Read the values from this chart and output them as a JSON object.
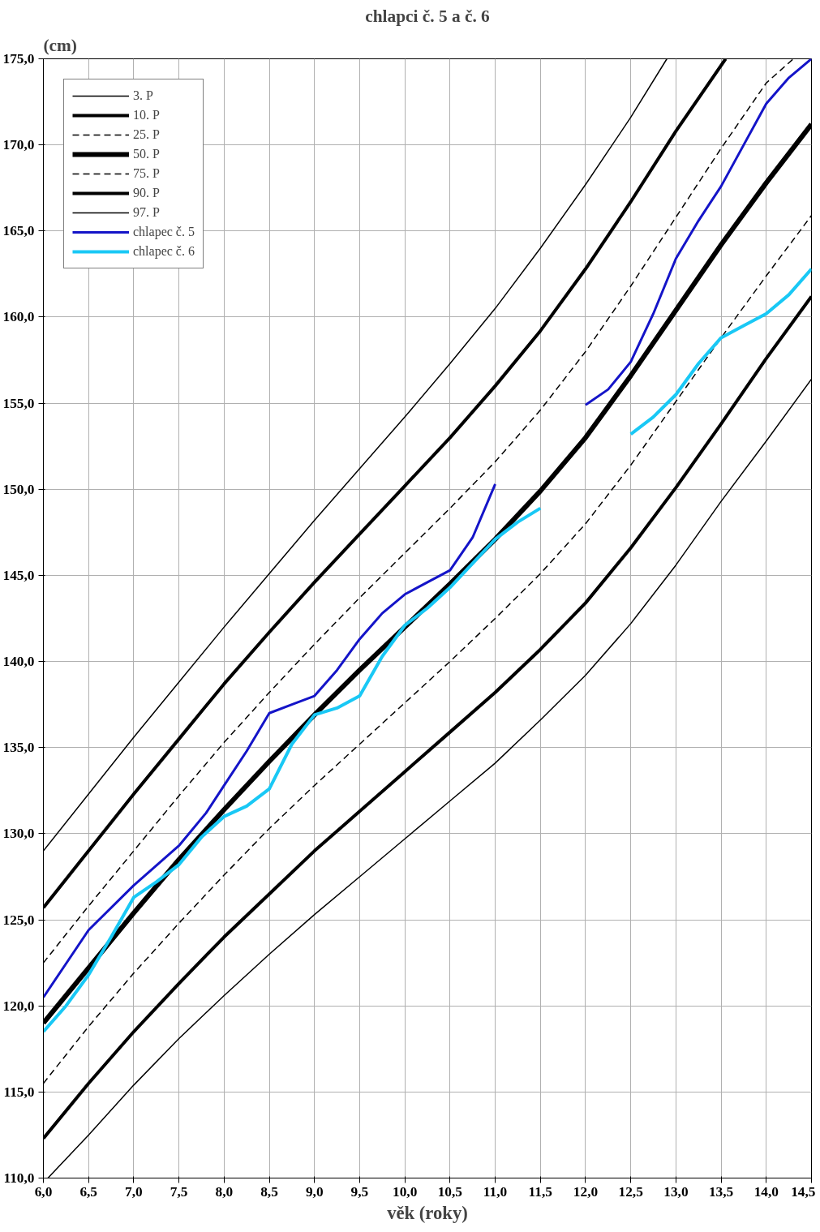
{
  "chart_data": {
    "type": "line",
    "title": "chlapci č. 5 a č. 6",
    "ylabel": "(cm)",
    "xlabel": "věk (roky)",
    "xlim": [
      6.0,
      14.5
    ],
    "ylim": [
      110,
      175
    ],
    "xticks": [
      {
        "value": 6.0,
        "label": "6,0"
      },
      {
        "value": 6.5,
        "label": "6,5"
      },
      {
        "value": 7.0,
        "label": "7,0"
      },
      {
        "value": 7.5,
        "label": "7,5"
      },
      {
        "value": 8.0,
        "label": "8,0"
      },
      {
        "value": 8.5,
        "label": "8,5"
      },
      {
        "value": 9.0,
        "label": "9,0"
      },
      {
        "value": 9.5,
        "label": "9,5"
      },
      {
        "value": 10.0,
        "label": "10,0"
      },
      {
        "value": 10.5,
        "label": "10,5"
      },
      {
        "value": 11.0,
        "label": "11,0"
      },
      {
        "value": 11.5,
        "label": "11,5"
      },
      {
        "value": 12.0,
        "label": "12,0"
      },
      {
        "value": 12.5,
        "label": "12,5"
      },
      {
        "value": 13.0,
        "label": "13,0"
      },
      {
        "value": 13.5,
        "label": "13,5"
      },
      {
        "value": 14.0,
        "label": "14,0"
      },
      {
        "value": 14.5,
        "label": "14,5"
      }
    ],
    "yticks": [
      {
        "value": 110,
        "label": "110,0"
      },
      {
        "value": 115,
        "label": "115,0"
      },
      {
        "value": 120,
        "label": "120,0"
      },
      {
        "value": 125,
        "label": "125,0"
      },
      {
        "value": 130,
        "label": "130,0"
      },
      {
        "value": 135,
        "label": "135,0"
      },
      {
        "value": 140,
        "label": "140,0"
      },
      {
        "value": 145,
        "label": "145,0"
      },
      {
        "value": 150,
        "label": "150,0"
      },
      {
        "value": 155,
        "label": "155,0"
      },
      {
        "value": 160,
        "label": "160,0"
      },
      {
        "value": 165,
        "label": "165,0"
      },
      {
        "value": 170,
        "label": "170,0"
      },
      {
        "value": 175,
        "label": "175,0"
      }
    ],
    "grid": true,
    "legend": "top left",
    "marker": "none",
    "series": [
      {
        "name": "3. P",
        "color": "#000000",
        "line_style": "solid",
        "x": [
          6.05,
          6.5,
          7.0,
          7.5,
          8.0,
          8.5,
          9.0,
          9.5,
          10.0,
          10.5,
          11.0,
          11.5,
          12.0,
          12.5,
          13.0,
          13.5,
          14.0,
          14.5
        ],
        "values": [
          110.0,
          112.5,
          115.4,
          118.1,
          120.6,
          123.0,
          125.3,
          127.5,
          129.7,
          131.9,
          134.1,
          136.6,
          139.2,
          142.2,
          145.6,
          149.3,
          152.8,
          156.4
        ]
      },
      {
        "name": "10. P",
        "color": "#000000",
        "line_style": "solid",
        "x": [
          6.0,
          6.5,
          7.0,
          7.5,
          8.0,
          8.5,
          9.0,
          9.5,
          10.0,
          10.5,
          11.0,
          11.5,
          12.0,
          12.5,
          13.0,
          13.5,
          14.0,
          14.5
        ],
        "values": [
          112.3,
          115.5,
          118.5,
          121.3,
          124.0,
          126.5,
          129.0,
          131.3,
          133.6,
          135.9,
          138.2,
          140.7,
          143.4,
          146.6,
          150.1,
          153.8,
          157.6,
          161.2
        ]
      },
      {
        "name": "25. P",
        "color": "#000000",
        "line_style": "dashed",
        "x": [
          6.0,
          6.5,
          7.0,
          7.5,
          8.0,
          8.5,
          9.0,
          9.5,
          10.0,
          10.5,
          11.0,
          11.5,
          12.0,
          12.5,
          13.0,
          13.5,
          14.0,
          14.5
        ],
        "values": [
          115.5,
          118.8,
          121.9,
          124.8,
          127.6,
          130.3,
          132.8,
          135.2,
          137.6,
          140.0,
          142.5,
          145.1,
          148.0,
          151.4,
          155.1,
          158.8,
          162.4,
          165.9
        ]
      },
      {
        "name": "50. P",
        "color": "#000000",
        "line_style": "solid",
        "x": [
          6.0,
          6.5,
          7.0,
          7.5,
          8.0,
          8.5,
          9.0,
          9.5,
          10.0,
          10.5,
          11.0,
          11.5,
          12.0,
          12.5,
          13.0,
          13.5,
          14.0,
          14.5
        ],
        "values": [
          119.0,
          122.2,
          125.4,
          128.5,
          131.4,
          134.2,
          136.9,
          139.5,
          142.0,
          144.5,
          147.1,
          149.9,
          153.0,
          156.6,
          160.4,
          164.2,
          167.8,
          171.2
        ]
      },
      {
        "name": "75. P",
        "color": "#000000",
        "line_style": "dashed",
        "x": [
          6.0,
          6.5,
          7.0,
          7.5,
          8.0,
          8.5,
          9.0,
          9.5,
          10.0,
          10.5,
          11.0,
          11.5,
          12.0,
          12.5,
          13.0,
          13.5,
          14.0,
          14.3
        ],
        "values": [
          122.5,
          125.8,
          129.0,
          132.2,
          135.3,
          138.2,
          141.0,
          143.7,
          146.3,
          148.9,
          151.6,
          154.6,
          158.0,
          161.8,
          165.8,
          169.8,
          173.6,
          175.0
        ]
      },
      {
        "name": "90. P",
        "color": "#000000",
        "line_style": "solid",
        "x": [
          6.0,
          6.5,
          7.0,
          7.5,
          8.0,
          8.5,
          9.0,
          9.5,
          10.0,
          10.5,
          11.0,
          11.5,
          12.0,
          12.5,
          13.0,
          13.55
        ],
        "values": [
          125.7,
          129.0,
          132.3,
          135.5,
          138.7,
          141.7,
          144.6,
          147.4,
          150.2,
          153.0,
          156.0,
          159.2,
          162.8,
          166.7,
          170.8,
          175.0
        ]
      },
      {
        "name": "97. P",
        "color": "#000000",
        "line_style": "solid",
        "x": [
          6.0,
          6.5,
          7.0,
          7.5,
          8.0,
          8.5,
          9.0,
          9.5,
          10.0,
          10.5,
          11.0,
          11.5,
          12.0,
          12.5,
          12.9
        ],
        "values": [
          129.0,
          132.3,
          135.6,
          138.8,
          142.0,
          145.1,
          148.2,
          151.2,
          154.2,
          157.3,
          160.5,
          164.0,
          167.7,
          171.6,
          175.0
        ]
      },
      {
        "name": "chlapec č. 5",
        "color": "#1414c8",
        "line_style": "solid",
        "x": [
          6.0,
          6.5,
          7.0,
          7.5,
          7.8,
          8.0,
          8.25,
          8.5,
          8.75,
          9.0,
          9.25,
          9.5,
          9.75,
          10.0,
          10.25,
          10.5,
          10.75,
          11.0,
          11.5,
          12.0,
          12.25,
          12.5,
          12.75,
          13.0,
          13.25,
          13.5,
          13.75,
          14.0,
          14.25,
          14.5
        ],
        "values": [
          120.5,
          124.4,
          127.0,
          129.3,
          131.2,
          132.8,
          134.8,
          137.0,
          137.5,
          138.0,
          139.5,
          141.3,
          142.8,
          143.9,
          144.6,
          145.3,
          147.2,
          150.3,
          null,
          154.9,
          155.8,
          157.4,
          160.2,
          163.4,
          165.6,
          167.6,
          170.0,
          172.4,
          173.9,
          175.0
        ]
      },
      {
        "name": "chlapec č. 6",
        "color": "#19c8f5",
        "line_style": "solid",
        "x": [
          6.0,
          6.25,
          6.5,
          6.75,
          7.0,
          7.25,
          7.5,
          7.75,
          8.0,
          8.25,
          8.5,
          8.75,
          9.0,
          9.25,
          9.5,
          9.75,
          10.0,
          10.25,
          10.5,
          10.75,
          11.0,
          11.25,
          11.5,
          12.0,
          12.5,
          12.75,
          13.0,
          13.25,
          13.5,
          13.75,
          14.0,
          14.25,
          14.5
        ],
        "values": [
          118.5,
          120.0,
          121.8,
          124.0,
          126.3,
          127.2,
          128.2,
          129.8,
          131.0,
          131.6,
          132.6,
          135.2,
          136.9,
          137.3,
          138.0,
          140.3,
          142.1,
          143.1,
          144.3,
          145.7,
          147.1,
          148.1,
          148.9,
          null,
          153.2,
          154.2,
          155.5,
          157.3,
          158.8,
          159.5,
          160.2,
          161.3,
          162.8
        ]
      }
    ]
  }
}
